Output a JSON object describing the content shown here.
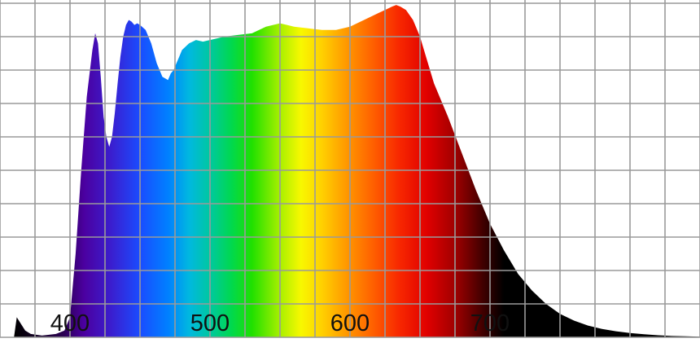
{
  "chart_data": {
    "type": "area",
    "title": "",
    "xlabel": "",
    "ylabel": "",
    "xlim": [
      350,
      850
    ],
    "ylim": [
      0,
      1
    ],
    "grid": true,
    "x_ticks": [
      {
        "value": 400,
        "label": "400"
      },
      {
        "value": 500,
        "label": "500"
      },
      {
        "value": 600,
        "label": "600"
      },
      {
        "value": 700,
        "label": "700"
      }
    ],
    "series": [
      {
        "fill": "visible-spectrum-gradient",
        "x": [
          360,
          362,
          365,
          368,
          372,
          380,
          390,
          396,
          400,
          404,
          408,
          412,
          416,
          418,
          420,
          422,
          424,
          426,
          428,
          430,
          432,
          434,
          436,
          438,
          440,
          442,
          444,
          446,
          448,
          450,
          454,
          458,
          462,
          466,
          470,
          472,
          474,
          476,
          478,
          480,
          485,
          490,
          495,
          500,
          505,
          510,
          520,
          530,
          540,
          550,
          555,
          560,
          570,
          580,
          590,
          600,
          610,
          620,
          625,
          630,
          633,
          636,
          640,
          645,
          650,
          655,
          660,
          670,
          680,
          690,
          700,
          710,
          720,
          730,
          740,
          750,
          760,
          770,
          780,
          790,
          800,
          810,
          820,
          830,
          840,
          850
        ],
        "y": [
          0.0,
          0.06,
          0.04,
          0.02,
          0.01,
          0.005,
          0.01,
          0.02,
          0.06,
          0.25,
          0.5,
          0.72,
          0.86,
          0.91,
          0.88,
          0.78,
          0.66,
          0.6,
          0.57,
          0.6,
          0.67,
          0.76,
          0.84,
          0.9,
          0.935,
          0.95,
          0.945,
          0.935,
          0.94,
          0.935,
          0.92,
          0.88,
          0.82,
          0.78,
          0.77,
          0.79,
          0.8,
          0.82,
          0.84,
          0.86,
          0.88,
          0.89,
          0.885,
          0.89,
          0.895,
          0.9,
          0.905,
          0.91,
          0.93,
          0.94,
          0.935,
          0.93,
          0.925,
          0.92,
          0.92,
          0.93,
          0.95,
          0.97,
          0.98,
          0.99,
          0.995,
          0.99,
          0.98,
          0.95,
          0.9,
          0.83,
          0.76,
          0.66,
          0.55,
          0.44,
          0.34,
          0.26,
          0.19,
          0.14,
          0.1,
          0.07,
          0.05,
          0.035,
          0.025,
          0.018,
          0.013,
          0.009,
          0.006,
          0.004,
          0.003,
          0.002
        ]
      }
    ],
    "colors": {
      "grid": "#9a9a9a",
      "background": "#ffffff",
      "tick_label": "#111111",
      "spectrum_stops": [
        {
          "nm": 360,
          "color": "#000000"
        },
        {
          "nm": 395,
          "color": "#2a0050"
        },
        {
          "nm": 410,
          "color": "#4b00a0"
        },
        {
          "nm": 430,
          "color": "#3a1fd0"
        },
        {
          "nm": 450,
          "color": "#1a4cff"
        },
        {
          "nm": 470,
          "color": "#0080ff"
        },
        {
          "nm": 485,
          "color": "#00b8e0"
        },
        {
          "nm": 500,
          "color": "#00c8a0"
        },
        {
          "nm": 515,
          "color": "#00d850"
        },
        {
          "nm": 530,
          "color": "#20e000"
        },
        {
          "nm": 550,
          "color": "#a8f000"
        },
        {
          "nm": 565,
          "color": "#f8f800"
        },
        {
          "nm": 580,
          "color": "#ffd000"
        },
        {
          "nm": 595,
          "color": "#ffa000"
        },
        {
          "nm": 615,
          "color": "#ff6400"
        },
        {
          "nm": 635,
          "color": "#f82800"
        },
        {
          "nm": 655,
          "color": "#e00000"
        },
        {
          "nm": 675,
          "color": "#a00000"
        },
        {
          "nm": 695,
          "color": "#400000"
        },
        {
          "nm": 710,
          "color": "#000000"
        },
        {
          "nm": 850,
          "color": "#000000"
        }
      ]
    }
  }
}
